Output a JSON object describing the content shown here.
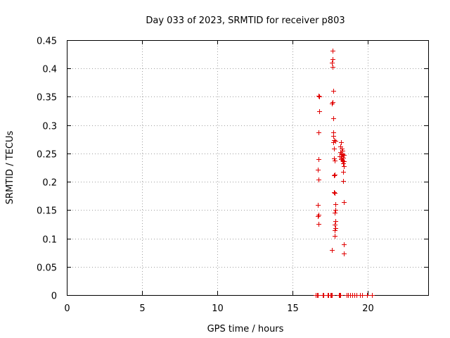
{
  "chart_data": {
    "type": "scatter",
    "title": "Day 033 of 2023, SRMTID for receiver p803",
    "xlabel": "GPS time / hours",
    "ylabel": "SRMTID / TECUs",
    "xlim": [
      0,
      24
    ],
    "ylim": [
      0,
      0.45
    ],
    "x_ticks": [
      0,
      5,
      10,
      15,
      20
    ],
    "x_tick_labels": [
      "0",
      "5",
      "10",
      "15",
      "20"
    ],
    "y_ticks": [
      0,
      0.05,
      0.1,
      0.15,
      0.2,
      0.25,
      0.3,
      0.35,
      0.4,
      0.45
    ],
    "y_tick_labels": [
      "0",
      "0.05",
      "0.1",
      "0.15",
      "0.2",
      "0.25",
      "0.3",
      "0.35",
      "0.4",
      "0.45"
    ],
    "grid": true,
    "marker": "plus",
    "marker_color": "#e00000",
    "series": [
      {
        "name": "SRMTID",
        "points": [
          [
            16.55,
            0.0
          ],
          [
            16.6,
            0.0
          ],
          [
            16.65,
            0.0
          ],
          [
            16.7,
            0.352
          ],
          [
            16.75,
            0.35
          ],
          [
            16.75,
            0.325
          ],
          [
            16.7,
            0.287
          ],
          [
            16.7,
            0.24
          ],
          [
            16.65,
            0.221
          ],
          [
            16.7,
            0.204
          ],
          [
            16.65,
            0.159
          ],
          [
            16.7,
            0.142
          ],
          [
            16.65,
            0.139
          ],
          [
            16.7,
            0.125
          ],
          [
            17.0,
            0.0
          ],
          [
            17.05,
            0.0
          ],
          [
            17.3,
            0.0
          ],
          [
            17.35,
            0.0
          ],
          [
            17.5,
            0.0
          ],
          [
            17.55,
            0.0
          ],
          [
            17.6,
            0.0
          ],
          [
            17.65,
            0.431
          ],
          [
            17.65,
            0.416
          ],
          [
            17.6,
            0.41
          ],
          [
            17.65,
            0.403
          ],
          [
            17.7,
            0.361
          ],
          [
            17.65,
            0.34
          ],
          [
            17.6,
            0.338
          ],
          [
            17.7,
            0.312
          ],
          [
            17.7,
            0.287
          ],
          [
            17.7,
            0.281
          ],
          [
            17.75,
            0.273
          ],
          [
            17.85,
            0.272
          ],
          [
            17.7,
            0.27
          ],
          [
            17.75,
            0.258
          ],
          [
            17.75,
            0.241
          ],
          [
            17.8,
            0.238
          ],
          [
            17.8,
            0.213
          ],
          [
            17.75,
            0.211
          ],
          [
            17.75,
            0.182
          ],
          [
            17.8,
            0.18
          ],
          [
            17.85,
            0.16
          ],
          [
            17.85,
            0.151
          ],
          [
            17.8,
            0.146
          ],
          [
            17.85,
            0.13
          ],
          [
            17.8,
            0.124
          ],
          [
            17.85,
            0.118
          ],
          [
            17.8,
            0.114
          ],
          [
            17.8,
            0.104
          ],
          [
            17.6,
            0.079
          ],
          [
            18.05,
            0.0
          ],
          [
            18.1,
            0.0
          ],
          [
            18.15,
            0.0
          ],
          [
            18.2,
            0.27
          ],
          [
            18.15,
            0.262
          ],
          [
            18.25,
            0.258
          ],
          [
            18.3,
            0.255
          ],
          [
            18.15,
            0.252
          ],
          [
            18.2,
            0.25
          ],
          [
            18.3,
            0.248
          ],
          [
            18.4,
            0.247
          ],
          [
            18.1,
            0.245
          ],
          [
            18.25,
            0.243
          ],
          [
            18.35,
            0.242
          ],
          [
            18.2,
            0.24
          ],
          [
            18.3,
            0.238
          ],
          [
            18.4,
            0.236
          ],
          [
            18.35,
            0.233
          ],
          [
            18.4,
            0.228
          ],
          [
            18.35,
            0.217
          ],
          [
            18.35,
            0.202
          ],
          [
            18.4,
            0.164
          ],
          [
            18.4,
            0.09
          ],
          [
            18.4,
            0.073
          ],
          [
            18.6,
            0.0
          ],
          [
            18.7,
            0.0
          ],
          [
            18.8,
            0.0
          ],
          [
            18.95,
            0.0
          ],
          [
            19.1,
            0.0
          ],
          [
            19.25,
            0.0
          ],
          [
            19.45,
            0.0
          ],
          [
            19.6,
            0.0
          ],
          [
            19.95,
            0.0
          ],
          [
            20.25,
            0.0
          ]
        ]
      }
    ]
  }
}
